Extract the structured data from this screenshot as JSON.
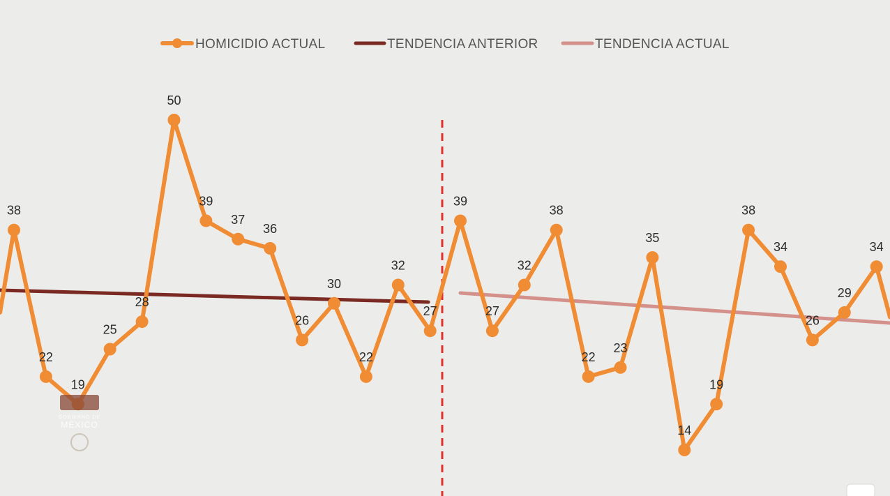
{
  "chart_data": {
    "type": "line",
    "legend_position": "top-center",
    "grid": false,
    "colors": {
      "homicidio": "#f08c34",
      "tendencia_anterior": "#7a2a22",
      "tendencia_actual": "#d4908a",
      "divider": "#e0322b",
      "background": "#ececea"
    },
    "series": [
      {
        "name": "HOMICIDIO ACTUAL",
        "values_before": [
          38,
          22,
          19,
          25,
          28,
          50,
          39,
          37,
          36,
          26,
          30,
          22,
          32,
          27
        ],
        "values_after": [
          39,
          27,
          32,
          38,
          22,
          23,
          35,
          14,
          19,
          38,
          34,
          26,
          29,
          34
        ]
      },
      {
        "name": "TENDENCIA ANTERIOR"
      },
      {
        "name": "TENDENCIA ACTUAL"
      }
    ]
  },
  "watermark": {
    "text": "MÉXICO",
    "subtext": "GOBIERNO DE"
  }
}
